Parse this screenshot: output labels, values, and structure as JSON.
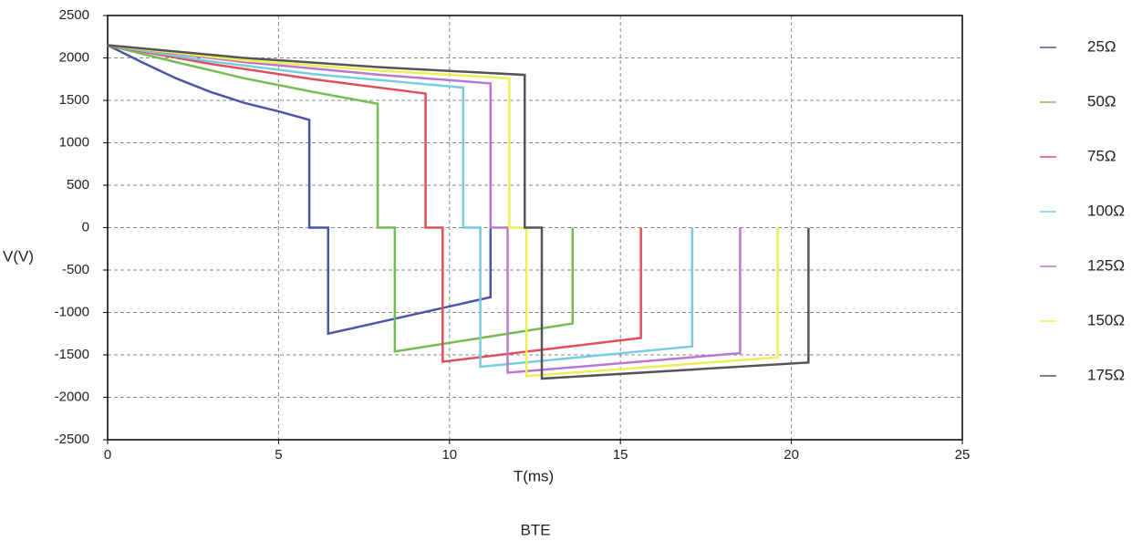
{
  "chart_data": {
    "type": "line",
    "xlabel": "T(ms)",
    "ylabel": "V(V)",
    "caption": "BTE",
    "xlim": [
      0,
      25
    ],
    "xticks": [
      0,
      5,
      10,
      15,
      20,
      25
    ],
    "ylim": [
      -2500,
      2500
    ],
    "yticks": [
      -2500,
      -2000,
      -1500,
      -1000,
      -500,
      0,
      500,
      1000,
      1500,
      2000,
      2500
    ],
    "grid": true,
    "legend": "right",
    "series": [
      {
        "name": "25Ω",
        "color": "#4a56a8",
        "x": [
          0,
          1,
          2,
          3,
          4,
          5,
          5.9,
          5.9,
          6.45,
          6.45,
          11.2,
          11.2
        ],
        "values": [
          2150,
          1950,
          1760,
          1600,
          1470,
          1370,
          1270,
          0,
          0,
          -1250,
          -820,
          0
        ]
      },
      {
        "name": "50Ω",
        "color": "#77bb55",
        "x": [
          0,
          2,
          4,
          6,
          7.9,
          7.9,
          8.4,
          8.4,
          13.6,
          13.6
        ],
        "values": [
          2150,
          1950,
          1760,
          1600,
          1460,
          0,
          0,
          -1460,
          -1130,
          0
        ]
      },
      {
        "name": "75Ω",
        "color": "#e0505a",
        "x": [
          0,
          3,
          6,
          9.3,
          9.3,
          9.8,
          9.8,
          15.6,
          15.6
        ],
        "values": [
          2150,
          1930,
          1750,
          1580,
          0,
          0,
          -1580,
          -1300,
          0
        ]
      },
      {
        "name": "100Ω",
        "color": "#77ccdd",
        "x": [
          0,
          3,
          6,
          10.4,
          10.4,
          10.9,
          10.9,
          17.1,
          17.1
        ],
        "values": [
          2150,
          1960,
          1810,
          1650,
          0,
          0,
          -1640,
          -1400,
          0
        ]
      },
      {
        "name": "125Ω",
        "color": "#bb77cc",
        "x": [
          0,
          4,
          8,
          11.2,
          11.2,
          11.7,
          11.7,
          18.5,
          18.5
        ],
        "values": [
          2150,
          1950,
          1800,
          1700,
          0,
          0,
          -1710,
          -1480,
          0
        ]
      },
      {
        "name": "150Ω",
        "color": "#eeee55",
        "x": [
          0,
          4,
          8,
          11.75,
          11.75,
          12.25,
          12.25,
          19.6,
          19.6
        ],
        "values": [
          2150,
          1970,
          1850,
          1760,
          0,
          0,
          -1750,
          -1530,
          0
        ]
      },
      {
        "name": "175Ω",
        "color": "#555555",
        "x": [
          0,
          4,
          8,
          12.2,
          12.2,
          12.7,
          12.7,
          20.5,
          20.5
        ],
        "values": [
          2150,
          2000,
          1890,
          1800,
          0,
          0,
          -1780,
          -1590,
          0
        ]
      }
    ]
  }
}
